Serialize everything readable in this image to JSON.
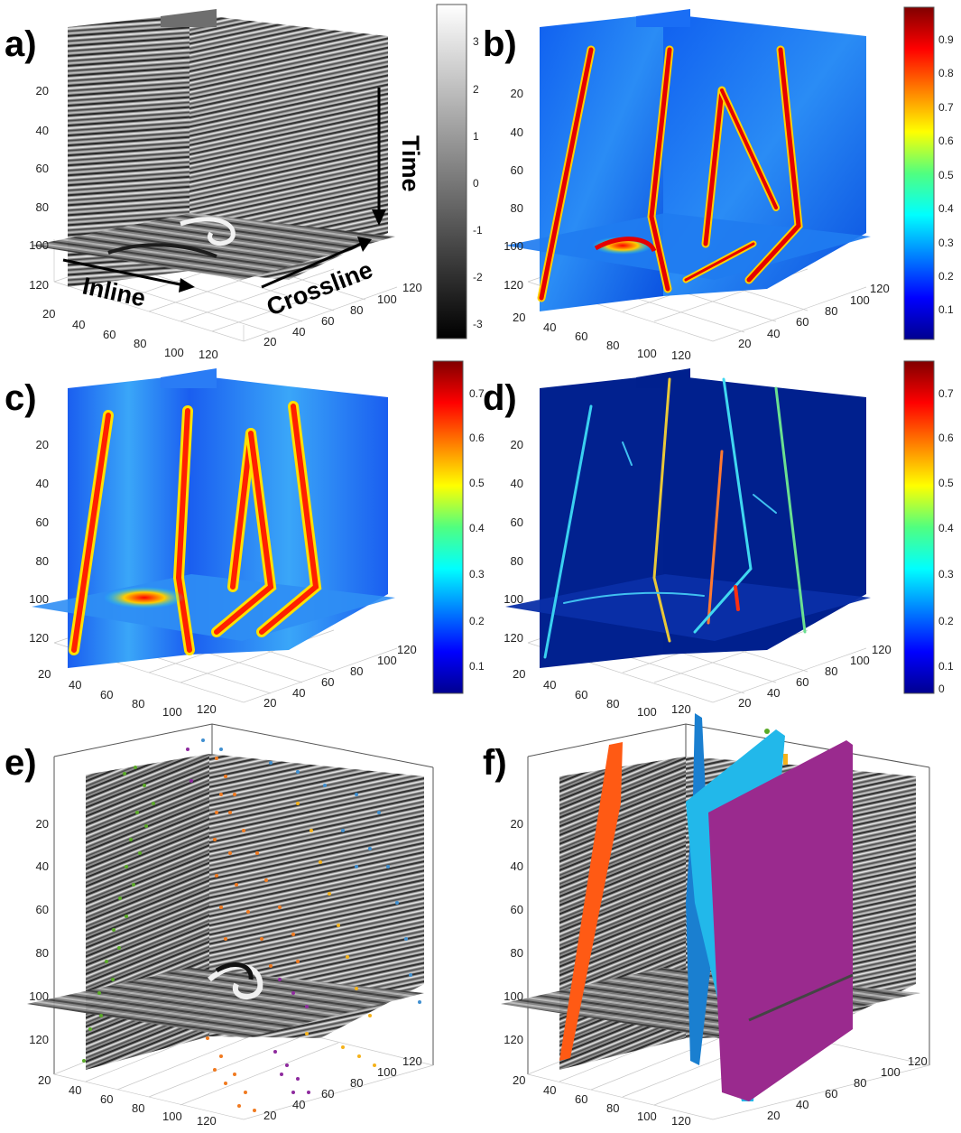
{
  "panel_labels": [
    "a)",
    "b)",
    "c)",
    "d)",
    "e)",
    "f)"
  ],
  "annotations": {
    "time": "Time",
    "inline": "Inline",
    "crossline": "Crossline"
  },
  "z_ticks_top": [
    "20",
    "40",
    "60",
    "80",
    "100",
    "120"
  ],
  "x_ticks": [
    "20",
    "40",
    "60",
    "80",
    "100",
    "120"
  ],
  "y_ticks": [
    "20",
    "40",
    "60",
    "80",
    "100",
    "120"
  ],
  "colorbar_a": [
    "3",
    "2",
    "1",
    "0",
    "-1",
    "-2",
    "-3"
  ],
  "colorbar_b": [
    "0.9",
    "0.8",
    "0.7",
    "0.6",
    "0.5",
    "0.4",
    "0.3",
    "0.2",
    "0.1"
  ],
  "colorbar_c": [
    "0.7",
    "0.6",
    "0.5",
    "0.4",
    "0.3",
    "0.2",
    "0.1"
  ],
  "colorbar_d": [
    "0.7",
    "0.6",
    "0.5",
    "0.4",
    "0.3",
    "0.2",
    "0.1",
    "0"
  ],
  "colors": {
    "fault_orange": "#ff5a14",
    "fault_blue": "#1a7fd0",
    "fault_cyan": "#22b8ea",
    "fault_purple": "#9a2a8e",
    "point_green": "#5aaa28",
    "point_orange": "#f07a20",
    "point_yellow": "#f5b21a",
    "point_blue": "#3f8fd0",
    "point_purple": "#8e2a9e"
  }
}
